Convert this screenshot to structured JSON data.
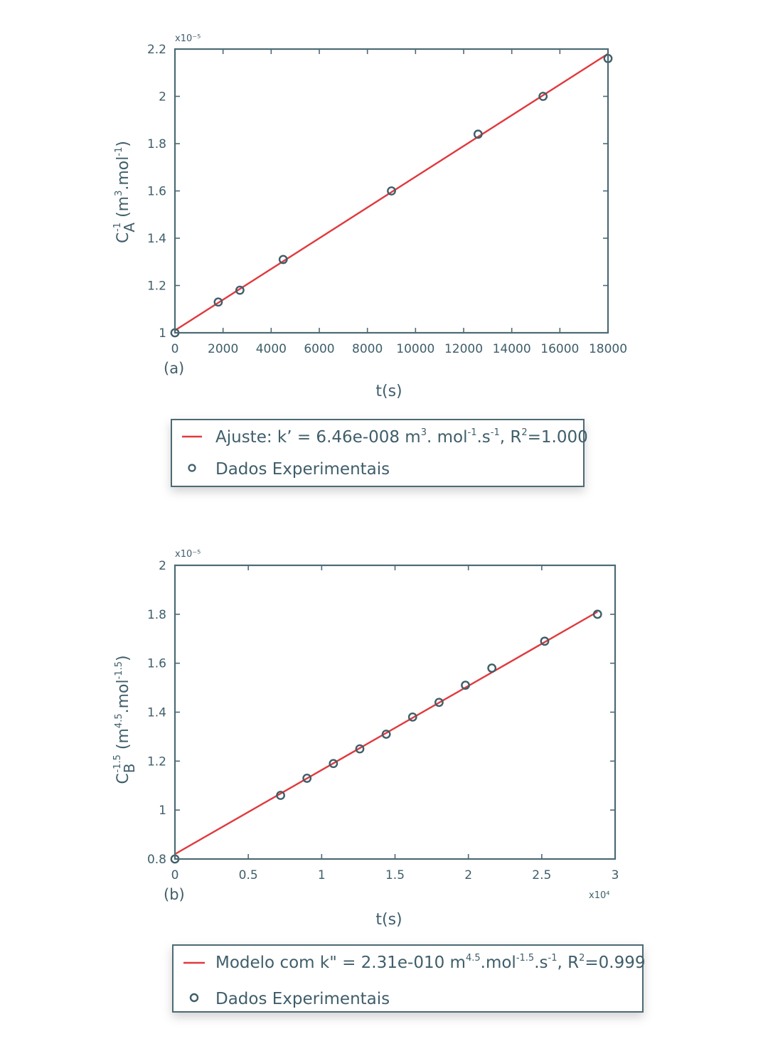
{
  "chart_data": [
    {
      "type": "scatter",
      "panel_label": "(a)",
      "xlabel": "t(s)",
      "ylabel": "C_A^-1 (m^3.mol^-1)",
      "y_exponent": "x10⁻⁵",
      "x_exponent": "",
      "xlim": [
        0,
        18000
      ],
      "ylim": [
        1,
        2.2
      ],
      "xticks": [
        0,
        2000,
        4000,
        6000,
        8000,
        10000,
        12000,
        14000,
        16000,
        18000
      ],
      "xticklabels": [
        "0",
        "2000",
        "4000",
        "6000",
        "8000",
        "10000",
        "12000",
        "14000",
        "16000",
        "18000"
      ],
      "yticks": [
        1,
        1.2,
        1.4,
        1.6,
        1.8,
        2,
        2.2
      ],
      "yticklabels": [
        "1",
        "1.2",
        "1.4",
        "1.6",
        "1.8",
        "2",
        "2.2"
      ],
      "series": [
        {
          "name": "Ajuste: k' = 6.46e-008 m³. mol⁻¹.s⁻¹, R²=1.000",
          "kind": "line",
          "color": "#e03a3e",
          "x": [
            0,
            18000
          ],
          "y": [
            1.01,
            2.18
          ]
        },
        {
          "name": "Dados Experimentais",
          "kind": "markers",
          "color": "#3f5e6a",
          "x": [
            0,
            1800,
            2700,
            4500,
            9000,
            12600,
            15300,
            18000
          ],
          "y": [
            1.0,
            1.13,
            1.18,
            1.31,
            1.6,
            1.84,
            2.0,
            2.16
          ]
        }
      ],
      "legend": {
        "line_prefix": "Ajuste: k’ = 6.46e-008 m",
        "line_sup1": "3",
        "line_mid1": ". mol",
        "line_sup2": "-1",
        "line_mid2": ".s",
        "line_sup3": "-1",
        "line_mid3": ", R",
        "line_sup4": "2",
        "line_end": "=1.000",
        "markers": "Dados Experimentais"
      }
    },
    {
      "type": "scatter",
      "panel_label": "(b)",
      "xlabel": "t(s)",
      "ylabel": "C_B^-1.5 (m^4.5.mol^-1.5)",
      "y_exponent": "x10⁻⁵",
      "x_exponent": "x10⁴",
      "xlim": [
        0,
        3
      ],
      "ylim": [
        0.8,
        2
      ],
      "xticks": [
        0,
        0.5,
        1,
        1.5,
        2,
        2.5,
        3
      ],
      "xticklabels": [
        "0",
        "0.5",
        "1",
        "1.5",
        "2",
        "2.5",
        "3"
      ],
      "yticks": [
        0.8,
        1,
        1.2,
        1.4,
        1.6,
        1.8,
        2
      ],
      "yticklabels": [
        "0.8",
        "1",
        "1.2",
        "1.4",
        "1.6",
        "1.8",
        "2"
      ],
      "series": [
        {
          "name": "Modelo com k\" = 2.31e-010 m^4.5.mol^-1.5.s^-1, R²=0.999",
          "kind": "line",
          "color": "#e03a3e",
          "x": [
            0,
            2.88
          ],
          "y": [
            0.82,
            1.81
          ]
        },
        {
          "name": "Dados Experimentais",
          "kind": "markers",
          "color": "#3f5e6a",
          "x": [
            0,
            0.72,
            0.9,
            1.08,
            1.26,
            1.44,
            1.62,
            1.8,
            1.98,
            2.16,
            2.52,
            2.88
          ],
          "y": [
            0.8,
            1.06,
            1.13,
            1.19,
            1.25,
            1.31,
            1.38,
            1.44,
            1.51,
            1.58,
            1.69,
            1.8
          ]
        }
      ],
      "legend": {
        "line_prefix": "Modelo com k\" = 2.31e-010 m",
        "line_sup1": "4.5",
        "line_mid1": ".mol",
        "line_sup2": "-1.5",
        "line_mid2": ".s",
        "line_sup3": "-1",
        "line_mid3": ", R",
        "line_sup4": "2",
        "line_end": "=0.999",
        "markers": "Dados Experimentais"
      }
    }
  ]
}
